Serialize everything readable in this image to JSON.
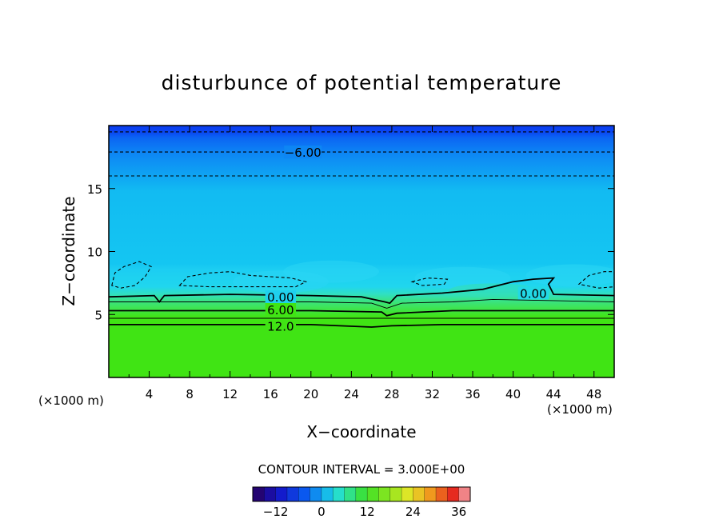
{
  "chart_data": {
    "type": "contour",
    "title": "disturbunce of potential temperature",
    "xlabel": "X−coordinate",
    "ylabel": "Z−coordinate",
    "x_unit_left": "(×1000 m)",
    "x_unit_right": "(×1000 m)",
    "xlim": [
      0,
      50
    ],
    "ylim": [
      0,
      20
    ],
    "x_ticks": [
      4,
      8,
      12,
      16,
      20,
      24,
      28,
      32,
      36,
      40,
      44,
      48
    ],
    "y_ticks": [
      5,
      10,
      15
    ],
    "contour_interval_text": "CONTOUR INTERVAL = 3.000E+00",
    "contour_labels": [
      {
        "text": "−6.00",
        "x": 19.2,
        "z": 17.9
      },
      {
        "text": "0.00",
        "x": 17.0,
        "z": 6.4
      },
      {
        "text": "6.00",
        "x": 17.0,
        "z": 5.4
      },
      {
        "text": "12.0",
        "x": 17.0,
        "z": 4.1
      },
      {
        "text": "0.00",
        "x": 42.0,
        "z": 6.7
      }
    ],
    "contours": [
      {
        "level": -9,
        "style": "dashed",
        "points": [
          [
            0,
            19.5
          ],
          [
            50,
            19.5
          ]
        ]
      },
      {
        "level": -6,
        "style": "dashed",
        "points": [
          [
            0,
            17.9
          ],
          [
            50,
            17.9
          ]
        ]
      },
      {
        "level": -3,
        "style": "dashed",
        "points": [
          [
            0,
            16.0
          ],
          [
            50,
            16.0
          ]
        ]
      },
      {
        "level": 0,
        "style": "solid",
        "points": [
          [
            0,
            6.4
          ],
          [
            4.5,
            6.5
          ],
          [
            5,
            6.0
          ],
          [
            5.5,
            6.5
          ],
          [
            12,
            6.6
          ],
          [
            20,
            6.5
          ],
          [
            25,
            6.4
          ],
          [
            27.3,
            6.0
          ],
          [
            27.8,
            5.9
          ],
          [
            28.5,
            6.5
          ],
          [
            33,
            6.7
          ],
          [
            37,
            7.0
          ],
          [
            40,
            7.6
          ],
          [
            42,
            7.8
          ],
          [
            44,
            7.9
          ],
          [
            43.5,
            7.4
          ],
          [
            44,
            6.6
          ],
          [
            50,
            6.5
          ]
        ]
      },
      {
        "level": 3,
        "style": "thin",
        "points": [
          [
            0,
            6.0
          ],
          [
            20,
            6.0
          ],
          [
            26,
            5.9
          ],
          [
            27.5,
            5.5
          ],
          [
            29,
            5.9
          ],
          [
            34,
            6.0
          ],
          [
            38,
            6.2
          ],
          [
            44,
            6.1
          ],
          [
            50,
            6.0
          ]
        ]
      },
      {
        "level": 6,
        "style": "solid",
        "points": [
          [
            0,
            5.3
          ],
          [
            20,
            5.3
          ],
          [
            27,
            5.2
          ],
          [
            27.5,
            4.9
          ],
          [
            28.5,
            5.1
          ],
          [
            34,
            5.3
          ],
          [
            50,
            5.3
          ]
        ]
      },
      {
        "level": 9,
        "style": "thin",
        "points": [
          [
            0,
            4.7
          ],
          [
            50,
            4.7
          ]
        ]
      },
      {
        "level": 12,
        "style": "solid",
        "points": [
          [
            0,
            4.2
          ],
          [
            20,
            4.2
          ],
          [
            26,
            4.0
          ],
          [
            28,
            4.1
          ],
          [
            33,
            4.2
          ],
          [
            50,
            4.2
          ]
        ]
      },
      {
        "level": -3,
        "style": "dashed",
        "closed": true,
        "points": [
          [
            0.3,
            7.3
          ],
          [
            0.6,
            8.3
          ],
          [
            1.5,
            8.8
          ],
          [
            3.0,
            9.2
          ],
          [
            4.2,
            8.8
          ],
          [
            3.6,
            8.0
          ],
          [
            2.6,
            7.3
          ],
          [
            1.2,
            7.1
          ]
        ]
      },
      {
        "level": -3,
        "style": "dashed",
        "closed": true,
        "points": [
          [
            7.0,
            7.3
          ],
          [
            7.8,
            8.0
          ],
          [
            10,
            8.3
          ],
          [
            12,
            8.4
          ],
          [
            14,
            8.1
          ],
          [
            16,
            8.0
          ],
          [
            18,
            7.9
          ],
          [
            19.5,
            7.6
          ],
          [
            18.5,
            7.2
          ],
          [
            14,
            7.2
          ],
          [
            10,
            7.2
          ]
        ]
      },
      {
        "level": -3,
        "style": "dashed",
        "closed": true,
        "points": [
          [
            30.0,
            7.6
          ],
          [
            31.5,
            7.9
          ],
          [
            33.5,
            7.8
          ],
          [
            33.2,
            7.4
          ],
          [
            31.0,
            7.3
          ]
        ]
      },
      {
        "level": -3,
        "style": "dashed",
        "closed": true,
        "points": [
          [
            46.5,
            7.4
          ],
          [
            47.5,
            8.1
          ],
          [
            49.0,
            8.4
          ],
          [
            50,
            8.4
          ],
          [
            50,
            7.2
          ],
          [
            48.5,
            7.1
          ]
        ]
      }
    ],
    "colorbar": {
      "vmin": -18,
      "vmax": 39,
      "interval": 3,
      "tick_values": [
        -12,
        0,
        12,
        24,
        36
      ],
      "tick_labels": [
        "−12",
        "0",
        "12",
        "24",
        "36"
      ]
    },
    "colors": {
      "upper_dark_blue": "#0a3cf0",
      "upper_blue": "#0d86f4",
      "mid_cyan": "#12bff2",
      "light_cyan": "#2ad6f4",
      "teal_green": "#34e0b4",
      "lower_green": "#40e414"
    }
  }
}
